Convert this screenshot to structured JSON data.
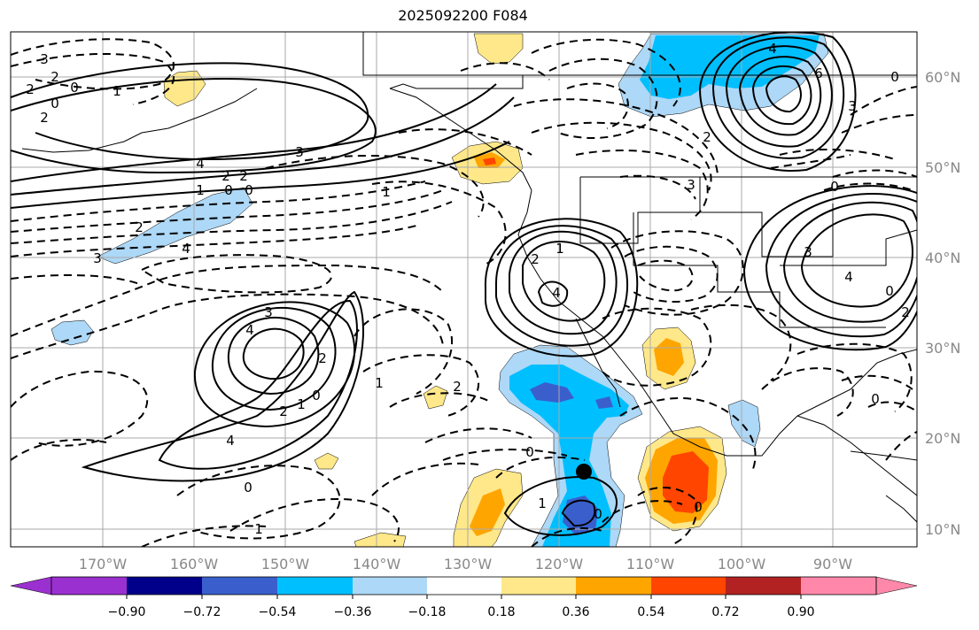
{
  "title": "2025092200 F084",
  "lon_labels": [
    "170°W",
    "160°W",
    "150°W",
    "140°W",
    "130°W",
    "120°W",
    "110°W",
    "100°W",
    "90°W"
  ],
  "lat_labels": [
    "60°N",
    "50°N",
    "40°N",
    "30°N",
    "20°N",
    "10°N"
  ],
  "colorbar": {
    "tick_labels": [
      "−0.90",
      "−0.72",
      "−0.54",
      "−0.36",
      "−0.18",
      "0.18",
      "0.36",
      "0.54",
      "0.72",
      "0.90"
    ],
    "colors": [
      "#9b30d0",
      "#00008b",
      "#3a5fcd",
      "#00bfff",
      "#add8f7",
      "#ffffff",
      "#ffe88a",
      "#ffa500",
      "#ff4500",
      "#b22222",
      "#ff88aa"
    ]
  },
  "contour_labels": [
    {
      "text": "3"
    },
    {
      "text": "2"
    },
    {
      "text": "0"
    },
    {
      "text": "2"
    },
    {
      "text": "2"
    },
    {
      "text": "0"
    },
    {
      "text": "1"
    },
    {
      "text": "4"
    },
    {
      "text": "3"
    },
    {
      "text": "2"
    },
    {
      "text": "2"
    },
    {
      "text": "0"
    },
    {
      "text": "0"
    },
    {
      "text": "1"
    },
    {
      "text": "1"
    },
    {
      "text": "2"
    },
    {
      "text": "3"
    },
    {
      "text": "4"
    },
    {
      "text": "3"
    },
    {
      "text": "4"
    },
    {
      "text": "2"
    },
    {
      "text": "1"
    },
    {
      "text": "0"
    },
    {
      "text": "2"
    },
    {
      "text": "4"
    },
    {
      "text": "0"
    },
    {
      "text": "1"
    },
    {
      "text": "1"
    },
    {
      "text": "2"
    },
    {
      "text": "0"
    },
    {
      "text": "1"
    },
    {
      "text": "0"
    },
    {
      "text": "2"
    },
    {
      "text": "4"
    },
    {
      "text": "1"
    },
    {
      "text": "4"
    },
    {
      "text": "6"
    },
    {
      "text": "3"
    },
    {
      "text": "0"
    },
    {
      "text": "2"
    },
    {
      "text": "3"
    },
    {
      "text": "0"
    },
    {
      "text": "3"
    },
    {
      "text": "4"
    },
    {
      "text": "0"
    },
    {
      "text": "2"
    },
    {
      "text": "0"
    },
    {
      "text": "0"
    }
  ],
  "marker": "storm-center-dot"
}
